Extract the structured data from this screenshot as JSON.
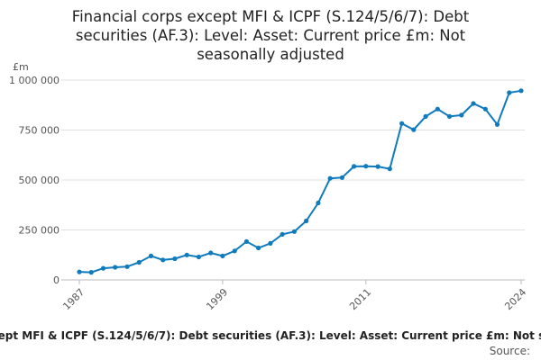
{
  "chart_data": {
    "type": "line",
    "title": "Financial corps except MFI & ICPF (S.124/5/6/7): Debt securities (AF.3): Level: Asset: Current price £m: Not seasonally adjusted",
    "unit_label": "£m",
    "series": [
      {
        "name": "Financial corps except MFI & ICPF (S.124/5/6/7): Debt securities (AF.3): Level: Asset: Current price £m: Not seasonally adjusted",
        "values": [
          40000,
          38000,
          58000,
          63000,
          66000,
          88000,
          120000,
          100000,
          106000,
          125000,
          115000,
          135000,
          120000,
          145000,
          192000,
          160000,
          183000,
          228000,
          242000,
          295000,
          385000,
          508000,
          512000,
          568000,
          569000,
          567000,
          556000,
          783000,
          752000,
          818000,
          855000,
          818000,
          825000,
          883000,
          855000,
          778000,
          937000,
          947000
        ]
      }
    ],
    "x": [
      1987,
      1988,
      1989,
      1990,
      1991,
      1992,
      1993,
      1994,
      1995,
      1996,
      1997,
      1998,
      1999,
      2000,
      2001,
      2002,
      2003,
      2004,
      2005,
      2006,
      2007,
      2008,
      2009,
      2010,
      2011,
      2012,
      2013,
      2014,
      2015,
      2016,
      2017,
      2018,
      2019,
      2020,
      2021,
      2022,
      2023,
      2024
    ],
    "x_ticks": [
      {
        "value": 1987,
        "label": "1987"
      },
      {
        "value": 1999,
        "label": "1999"
      },
      {
        "value": 2011,
        "label": "2011"
      },
      {
        "value": 2024,
        "label": "2024"
      }
    ],
    "y_ticks": [
      {
        "value": 0,
        "label": "0"
      },
      {
        "value": 250000,
        "label": "250 000"
      },
      {
        "value": 500000,
        "label": "500 000"
      },
      {
        "value": 750000,
        "label": "750 000"
      },
      {
        "value": 1000000,
        "label": "1 000 000"
      }
    ],
    "xlim": [
      1987,
      2024
    ],
    "ylim": [
      0,
      1000000
    ],
    "grid": "horizontal",
    "legend": "bottom",
    "colors": {
      "line": "#0f7bbd",
      "grid": "#e0e0e0",
      "axis": "#bbbbbb"
    }
  },
  "legend_text": "Financial corps except MFI & ICPF (S.124/5/6/7): Debt securities (AF.3): Level: Asset: Current price £m: Not seasonally adjusted",
  "source_label": "Source:"
}
